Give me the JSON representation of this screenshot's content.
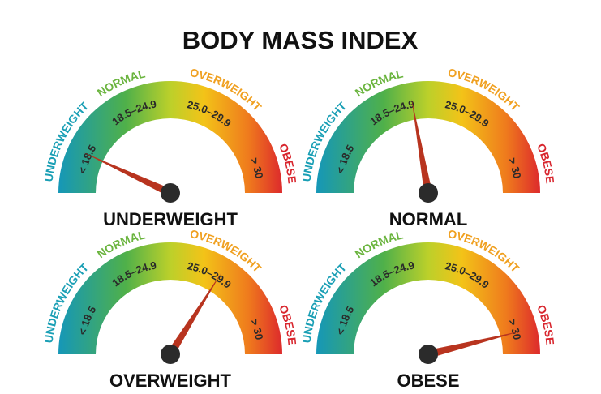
{
  "title": "BODY MASS INDEX",
  "zones": [
    {
      "name": "UNDERWEIGHT",
      "range": "< 18.5"
    },
    {
      "name": "NORMAL",
      "range": "18.5–24.9"
    },
    {
      "name": "OVERWEIGHT",
      "range": "25.0–29.9"
    },
    {
      "name": "OBESE",
      "range": "> 30"
    }
  ],
  "gauges": [
    {
      "label": "UNDERWEIGHT"
    },
    {
      "label": "NORMAL"
    },
    {
      "label": "OVERWEIGHT"
    },
    {
      "label": "OBESE"
    }
  ]
}
